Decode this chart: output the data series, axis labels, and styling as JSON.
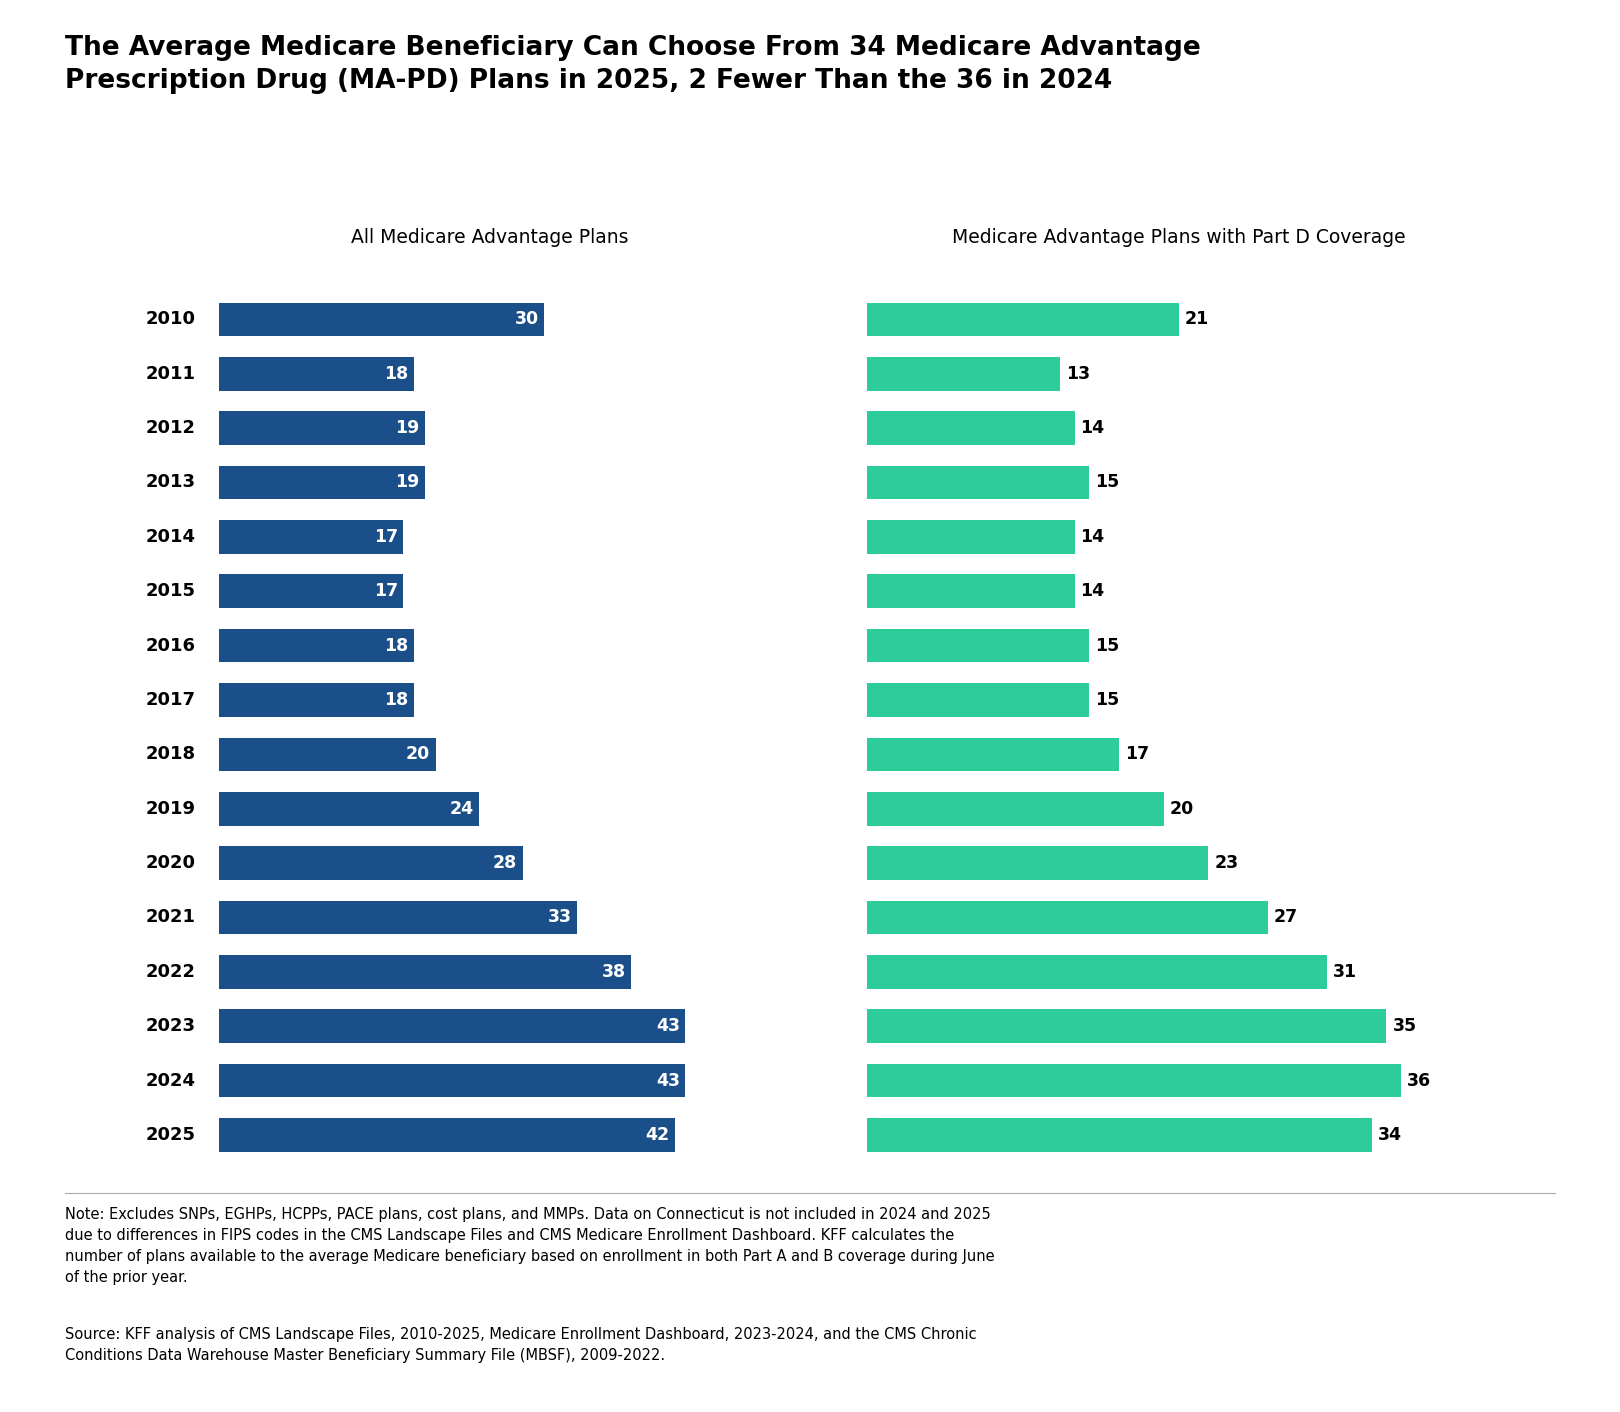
{
  "title_line1": "The Average Medicare Beneficiary Can Choose From 34 Medicare Advantage",
  "title_line2": "Prescription Drug (MA-PD) Plans in 2025, 2 Fewer Than the 36 in 2024",
  "years": [
    2010,
    2011,
    2012,
    2013,
    2014,
    2015,
    2016,
    2017,
    2018,
    2019,
    2020,
    2021,
    2022,
    2023,
    2024,
    2025
  ],
  "all_plans": [
    30,
    18,
    19,
    19,
    17,
    17,
    18,
    18,
    20,
    24,
    28,
    33,
    38,
    43,
    43,
    42
  ],
  "partd_plans": [
    21,
    13,
    14,
    15,
    14,
    14,
    15,
    15,
    17,
    20,
    23,
    27,
    31,
    35,
    36,
    34
  ],
  "left_title": "All Medicare Advantage Plans",
  "right_title": "Medicare Advantage Plans with Part D Coverage",
  "blue_color": "#1B4F8A",
  "teal_color": "#2ECC9A",
  "text_color_white": "#FFFFFF",
  "text_color_black": "#000000",
  "background_color": "#FFFFFF",
  "note_text": "Note: Excludes SNPs, EGHPs, HCPPs, PACE plans, cost plans, and MMPs. Data on Connecticut is not included in 2024 and 2025\ndue to differences in FIPS codes in the CMS Landscape Files and CMS Medicare Enrollment Dashboard. KFF calculates the\nnumber of plans available to the average Medicare beneficiary based on enrollment in both Part A and B coverage during June\nof the prior year.",
  "source_text": "Source: KFF analysis of CMS Landscape Files, 2010-2025, Medicare Enrollment Dashboard, 2023-2024, and the CMS Chronic\nConditions Data Warehouse Master Beneficiary Summary File (MBSF), 2009-2022."
}
